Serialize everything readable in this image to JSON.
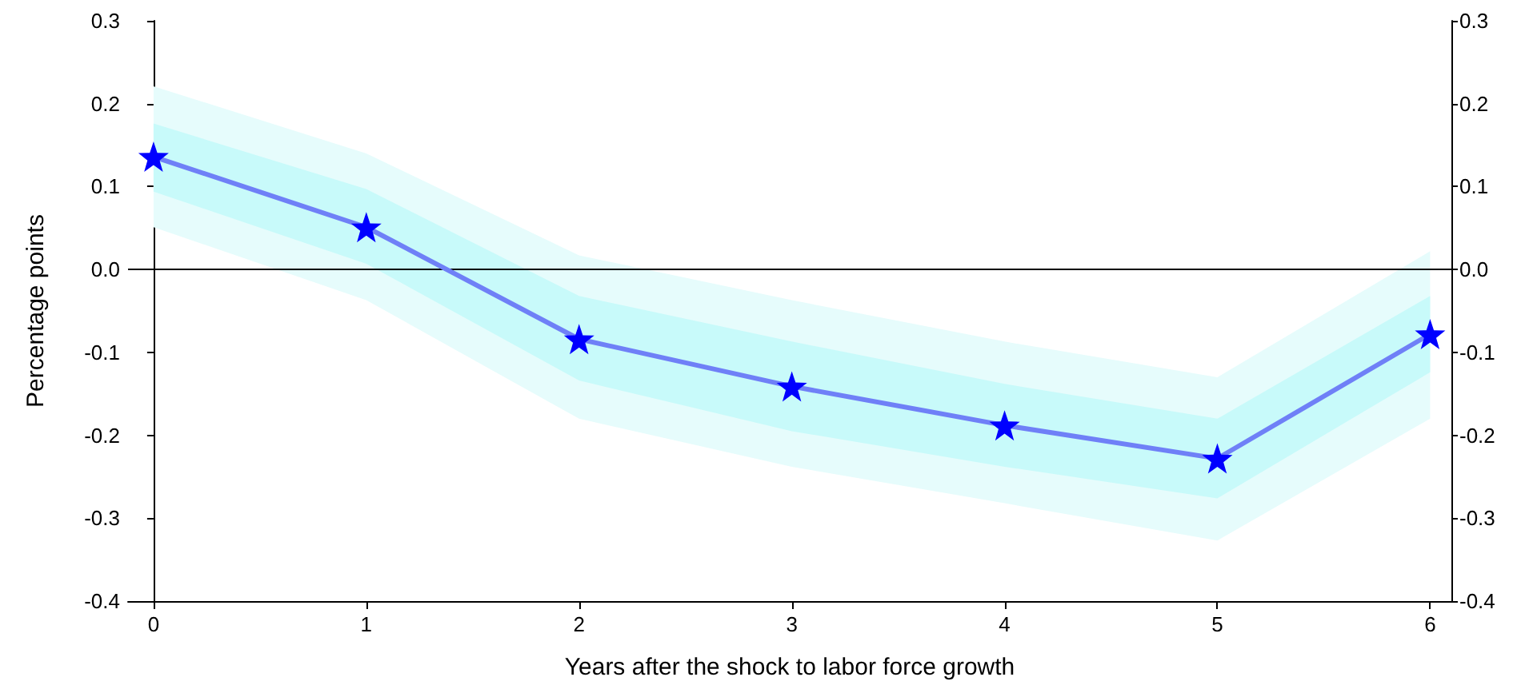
{
  "chart_data": {
    "type": "line",
    "xlabel": "Years after the shock to labor force growth",
    "ylabel": "Percentage points",
    "x": [
      0,
      1,
      2,
      3,
      4,
      5,
      6
    ],
    "xlim": [
      -0.12,
      6.1
    ],
    "xticks": [
      0,
      1,
      2,
      3,
      4,
      5,
      6
    ],
    "ylim": [
      -0.4,
      0.3
    ],
    "yticks": [
      -0.4,
      -0.3,
      -0.2,
      -0.1,
      {
        "value": 0,
        "label": "0.0"
      },
      0.1,
      0.2,
      0.3
    ],
    "y2lim": [
      -0.4,
      0.3
    ],
    "y2ticks": [
      -0.4,
      -0.3,
      -0.2,
      -0.1,
      {
        "value": 0,
        "label": "0.0"
      },
      0.1,
      0.2,
      0.3
    ],
    "series": [
      {
        "type": "area",
        "color": "#e6fcfc",
        "values": [
          null,
          null,
          null,
          null,
          null,
          null,
          null
        ],
        "lower": [
          0.051,
          -0.037,
          -0.18,
          -0.238,
          -0.282,
          -0.327,
          -0.18
        ],
        "upper": [
          0.221,
          0.14,
          0.017,
          -0.037,
          -0.087,
          -0.13,
          0.022
        ]
      },
      {
        "type": "area",
        "color": "#c8fafa",
        "values": [
          null,
          null,
          null,
          null,
          null,
          null,
          null
        ],
        "lower": [
          0.094,
          0.007,
          -0.134,
          -0.195,
          -0.238,
          -0.276,
          -0.124
        ],
        "upper": [
          0.176,
          0.097,
          -0.032,
          -0.087,
          -0.138,
          -0.18,
          -0.032
        ]
      },
      {
        "type": "line",
        "color": "#6f80f7",
        "colors": [
          "#0000ff",
          "#0000ff",
          "#0000ff",
          "#0000ff",
          "#0000ff",
          "#0000ff",
          "#0000ff"
        ],
        "values": [
          0.136,
          0.051,
          -0.084,
          -0.141,
          -0.188,
          -0.228,
          -0.078
        ],
        "marker": "star",
        "line_style": "solid"
      }
    ],
    "ref_lines": [
      {
        "axis": "y",
        "value": 0,
        "color": "#000000",
        "line_style": "solid"
      }
    ],
    "grid": false
  }
}
